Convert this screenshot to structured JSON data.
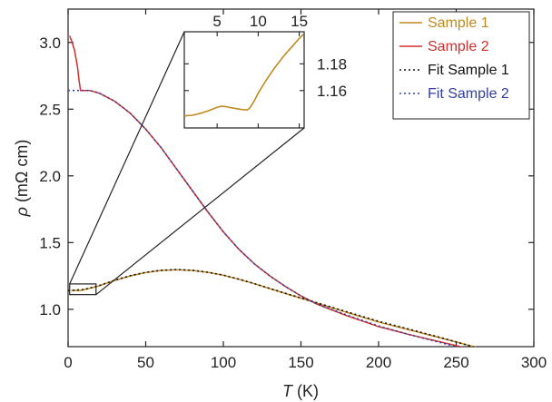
{
  "chart_data": {
    "type": "line",
    "xlabel_symbol": "T",
    "xlabel_unit": " (K)",
    "ylabel_symbol": "ρ",
    "ylabel_unit": " (mΩ cm)",
    "xlim": [
      0,
      300
    ],
    "ylim": [
      0.72,
      3.25
    ],
    "xticks": [
      0,
      50,
      100,
      150,
      200,
      250,
      300
    ],
    "yticks": [
      1.0,
      1.5,
      2.0,
      2.5,
      3.0
    ],
    "xtick_labels": [
      "0",
      "50",
      "100",
      "150",
      "200",
      "250",
      "300"
    ],
    "ytick_labels": [
      "1.0",
      "1.5",
      "2.0",
      "2.5",
      "3.0"
    ],
    "legend_position": "top-right",
    "series": [
      {
        "name": "Sample 1",
        "color": "#c08a1e",
        "style": "solid",
        "x": [
          2,
          5,
          8,
          10,
          12,
          15,
          20,
          25,
          30,
          40,
          50,
          60,
          70,
          80,
          90,
          100,
          110,
          120,
          140,
          160,
          180,
          200,
          220,
          240,
          260,
          280,
          300
        ],
        "y": [
          1.14,
          1.142,
          1.141,
          1.146,
          1.152,
          1.16,
          1.176,
          1.196,
          1.216,
          1.25,
          1.275,
          1.291,
          1.297,
          1.291,
          1.277,
          1.255,
          1.225,
          1.191,
          1.118,
          1.048,
          0.975,
          0.905,
          0.845,
          0.785,
          0.725,
          0.665,
          0.608
        ]
      },
      {
        "name": "Sample 2",
        "color": "#d32f2f",
        "style": "solid",
        "x": [
          1,
          2,
          4,
          6,
          7,
          8,
          10,
          14,
          20,
          30,
          40,
          50,
          60,
          70,
          80,
          90,
          100,
          110,
          120,
          130,
          140,
          150,
          160,
          180,
          200,
          220,
          240,
          260,
          280,
          300
        ],
        "y": [
          3.05,
          3.02,
          2.95,
          2.82,
          2.72,
          2.64,
          2.64,
          2.64,
          2.62,
          2.56,
          2.47,
          2.35,
          2.21,
          2.05,
          1.89,
          1.73,
          1.58,
          1.45,
          1.34,
          1.25,
          1.17,
          1.1,
          1.04,
          0.95,
          0.87,
          0.81,
          0.755,
          0.7,
          0.65,
          0.61
        ]
      },
      {
        "name": "Fit Sample 1",
        "color": "#111111",
        "style": "dotted",
        "x": [
          0,
          10,
          20,
          30,
          40,
          50,
          60,
          70,
          80,
          90,
          100,
          110,
          120,
          140,
          160,
          180,
          200,
          220,
          240,
          260,
          280,
          300
        ],
        "y": [
          1.14,
          1.148,
          1.178,
          1.218,
          1.252,
          1.277,
          1.292,
          1.298,
          1.292,
          1.278,
          1.256,
          1.226,
          1.192,
          1.12,
          1.05,
          0.98,
          0.91,
          0.85,
          0.788,
          0.722,
          0.655,
          0.59
        ]
      },
      {
        "name": "Fit Sample 2",
        "color": "#3340a0",
        "style": "dotted",
        "x": [
          0,
          5,
          10,
          14,
          20,
          30,
          40,
          50,
          60,
          70,
          80,
          90,
          100,
          110,
          120,
          130,
          140,
          150,
          160,
          180,
          200,
          220,
          240,
          260,
          280,
          300
        ],
        "y": [
          2.64,
          2.64,
          2.64,
          2.64,
          2.62,
          2.56,
          2.47,
          2.35,
          2.21,
          2.05,
          1.89,
          1.73,
          1.58,
          1.45,
          1.34,
          1.25,
          1.17,
          1.1,
          1.04,
          0.955,
          0.875,
          0.81,
          0.75,
          0.69,
          0.635,
          0.58
        ]
      }
    ],
    "inset": {
      "xlim": [
        1,
        15.6
      ],
      "ylim": [
        1.132,
        1.204
      ],
      "xticks": [
        5,
        10,
        15
      ],
      "yticks": [
        1.16,
        1.18
      ],
      "xtick_labels": [
        "5",
        "10",
        "15"
      ],
      "ytick_labels": [
        "1.16",
        "1.18"
      ],
      "zoom_region": {
        "x": [
          1,
          18
        ],
        "y": [
          1.11,
          1.19
        ]
      },
      "series": [
        {
          "name": "Sample 1",
          "color": "#c08a1e",
          "x": [
            1.0,
            2.0,
            3.0,
            4.0,
            5.0,
            5.5,
            6.0,
            7.0,
            8.0,
            8.7,
            9.0,
            9.5,
            10.0,
            11.0,
            12.0,
            13.0,
            14.0,
            15.0,
            15.5
          ],
          "y": [
            1.141,
            1.1415,
            1.143,
            1.145,
            1.1475,
            1.1483,
            1.148,
            1.1468,
            1.1458,
            1.1455,
            1.147,
            1.152,
            1.158,
            1.168,
            1.177,
            1.185,
            1.192,
            1.199,
            1.202
          ]
        }
      ]
    }
  }
}
